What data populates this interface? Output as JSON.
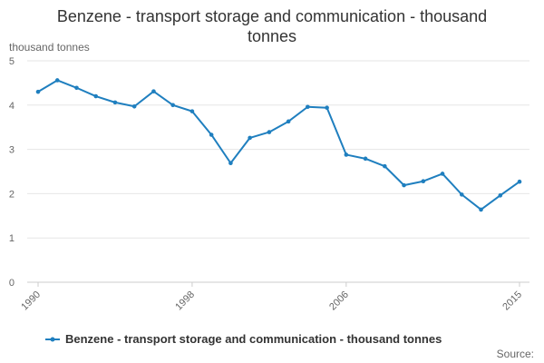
{
  "chart_data": {
    "type": "line",
    "title_line1": "Benzene - transport storage and communication - thousand",
    "title_line2": "tonnes",
    "ylabel": "thousand tonnes",
    "x": [
      1990,
      1991,
      1992,
      1993,
      1994,
      1995,
      1996,
      1997,
      1998,
      1999,
      2000,
      2001,
      2002,
      2003,
      2004,
      2005,
      2006,
      2007,
      2008,
      2009,
      2010,
      2011,
      2012,
      2013,
      2014,
      2015
    ],
    "series": [
      {
        "name": "Benzene - transport storage and communication - thousand tonnes",
        "values": [
          4.3,
          4.56,
          4.39,
          4.2,
          4.06,
          3.97,
          4.31,
          4.0,
          3.86,
          3.33,
          2.69,
          3.26,
          3.39,
          3.63,
          3.96,
          3.94,
          2.88,
          2.79,
          2.62,
          2.19,
          2.28,
          2.45,
          1.98,
          1.64,
          1.96,
          2.27
        ]
      }
    ],
    "xticks": [
      "1990",
      "1998",
      "2006",
      "2015"
    ],
    "yticks": [
      "0",
      "1",
      "2",
      "3",
      "4",
      "5"
    ],
    "ylim": [
      0,
      5
    ],
    "grid": true,
    "legend": "bottom-center",
    "source_label": "Source:",
    "line_color": "#1f7fbf"
  }
}
